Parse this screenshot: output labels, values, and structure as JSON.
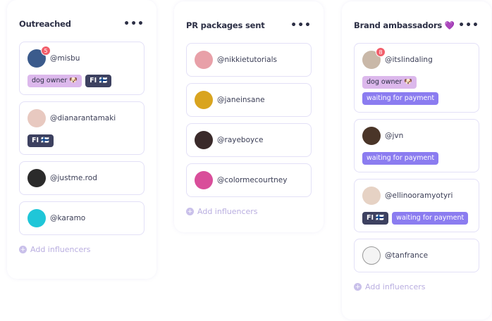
{
  "columns": [
    {
      "title": "Outreached",
      "more": "•••",
      "add": "Add influencers",
      "cards": [
        {
          "handle": "@misbu",
          "badge": "5",
          "avatar_color": "#3b5b8c",
          "tags": [
            {
              "label": "dog owner 🐶",
              "kind": "dog"
            },
            {
              "label": "FI 🇫🇮",
              "kind": "fi"
            }
          ]
        },
        {
          "handle": "@dianarantamaki",
          "avatar_color": "#e8c9c0",
          "tags": [
            {
              "label": "FI 🇫🇮",
              "kind": "fi"
            }
          ]
        },
        {
          "handle": "@justme.rod",
          "avatar_color": "#2b2b2b",
          "tags": []
        },
        {
          "handle": "@karamo",
          "avatar_color": "#1fc6d8",
          "tags": []
        }
      ]
    },
    {
      "title": "PR packages sent",
      "more": "•••",
      "add": "Add influencers",
      "cards": [
        {
          "handle": "@nikkietutorials",
          "avatar_color": "#e8a0a8",
          "tags": []
        },
        {
          "handle": "@janeinsane",
          "avatar_color": "#d9a41f",
          "tags": []
        },
        {
          "handle": "@rayeboyce",
          "avatar_color": "#3a2a2a",
          "tags": []
        },
        {
          "handle": "@colormecourtney",
          "avatar_color": "#d94e9a",
          "tags": []
        }
      ]
    },
    {
      "title": "Brand ambassadors 💜",
      "more": "•••",
      "add": "Add influencers",
      "cards": [
        {
          "handle": "@itslindaling",
          "badge": "8",
          "avatar_color": "#c9b8a8",
          "tags": [
            {
              "label": "dog owner 🐶",
              "kind": "dog"
            },
            {
              "label": "waiting for payment",
              "kind": "wait"
            }
          ]
        },
        {
          "handle": "@jvn",
          "avatar_color": "#4a3528",
          "tags": [
            {
              "label": "waiting for payment",
              "kind": "wait"
            }
          ]
        },
        {
          "handle": "@ellinooramyotyri",
          "avatar_color": "#e6d2c4",
          "tags": [
            {
              "label": "FI 🇫🇮",
              "kind": "fi"
            },
            {
              "label": "waiting for payment",
              "kind": "wait"
            }
          ]
        },
        {
          "handle": "@tanfrance",
          "avatar_color": "#f4f4f4",
          "tags": []
        }
      ]
    }
  ]
}
